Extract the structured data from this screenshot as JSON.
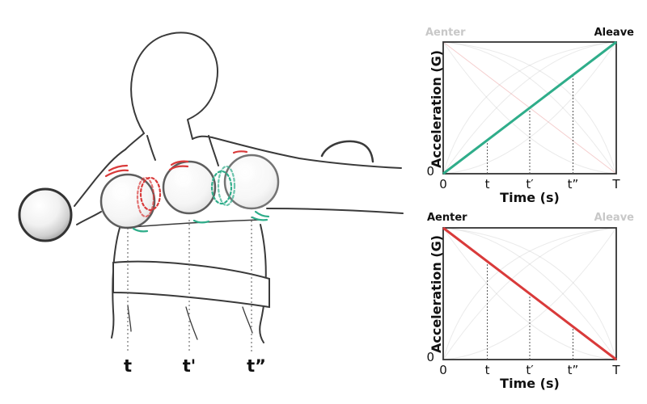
{
  "illustration": {
    "time_labels": [
      "t",
      "t'",
      "t”"
    ]
  },
  "colors": {
    "green": "#2fad8a",
    "red": "#d93a3a",
    "ink": "#333333",
    "faded": "#c8c8c8"
  },
  "chart_data": [
    {
      "type": "line",
      "corner_left": "Aenter",
      "corner_right": "Aleave",
      "active_corner": "right",
      "xlabel": "Time (s)",
      "ylabel": "Acceleration (G)",
      "x_ticks": [
        "0",
        "t",
        "t′",
        "t”",
        "T"
      ],
      "y_ticks": [
        "0"
      ],
      "series": [
        {
          "x": [
            0,
            1
          ],
          "y": [
            0,
            1
          ],
          "color": "#2fad8a"
        }
      ]
    },
    {
      "type": "line",
      "corner_left": "Aenter",
      "corner_right": "Aleave",
      "active_corner": "left",
      "xlabel": "Time (s)",
      "ylabel": "Acceleration (G)",
      "x_ticks": [
        "0",
        "t",
        "t′",
        "t”",
        "T"
      ],
      "y_ticks": [
        "0"
      ],
      "series": [
        {
          "x": [
            0,
            1
          ],
          "y": [
            1,
            0
          ],
          "color": "#d93a3a"
        }
      ]
    }
  ]
}
